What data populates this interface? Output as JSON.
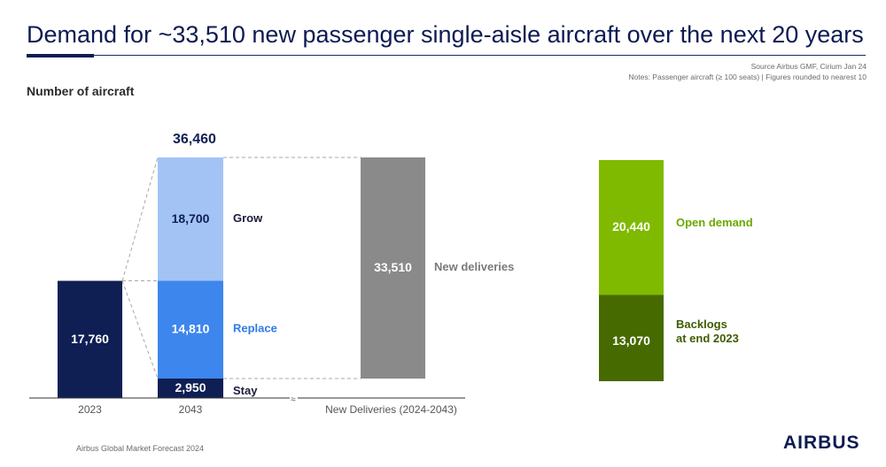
{
  "header": {
    "title": "Demand for ~33,510 new passenger single-aisle aircraft over the next 20 years",
    "source": "Source Airbus GMF, Cirium Jan 24",
    "notes": "Notes: Passenger aircraft (≥ 100 seats) | Figures rounded to nearest 10"
  },
  "footer": {
    "left_text": "Airbus Global Market Forecast 2024",
    "logo_text": "AIRBUS"
  },
  "colors": {
    "fleet_2023": "#0f1f54",
    "stay": "#0f1f54",
    "replace": "#3d86ee",
    "grow": "#a3c3f5",
    "new_deliveries": "#8a8a8a",
    "open_demand": "#7fba00",
    "backlogs": "#466900",
    "replace_label": "#2f7ae5",
    "open_demand_label": "#6aa800",
    "backlogs_label": "#3d5c00"
  },
  "chart_data": {
    "type": "bar",
    "ylabel": "Number of aircraft",
    "categories": [
      "2023",
      "2043",
      "New Deliveries (2024-2043)"
    ],
    "bars": [
      {
        "category": "2023",
        "segments": [
          {
            "name": "",
            "value": 17760,
            "label": "17,760"
          }
        ]
      },
      {
        "category": "2043",
        "total": 36460,
        "total_label": "36,460",
        "segments": [
          {
            "name": "Stay",
            "value": 2950,
            "label": "2,950"
          },
          {
            "name": "Replace",
            "value": 14810,
            "label": "14,810"
          },
          {
            "name": "Grow",
            "value": 18700,
            "label": "18,700"
          }
        ]
      },
      {
        "category": "New Deliveries (2024-2043)",
        "segments": [
          {
            "name": "New deliveries",
            "value": 33510,
            "label": "33,510"
          }
        ]
      },
      {
        "category": "",
        "segments": [
          {
            "name": "Backlogs\nat end 2023",
            "value": 13070,
            "label": "13,070"
          },
          {
            "name": "Open demand",
            "value": 20440,
            "label": "20,440"
          }
        ]
      }
    ],
    "ylim": [
      0,
      36460
    ],
    "grid": false
  }
}
